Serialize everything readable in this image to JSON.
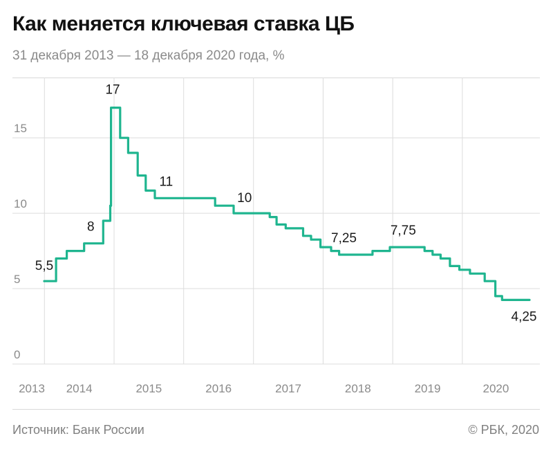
{
  "header": {
    "title": "Как меняется ключевая ставка ЦБ",
    "subtitle": "31 декабря 2013 — 18 декабря 2020 года, %"
  },
  "footer": {
    "source": "Источник: Банк России",
    "copyright": "© РБК, 2020"
  },
  "colors": {
    "line": "#1fb58f",
    "grid": "#dcdcdc",
    "tick_text": "#8a8a8a",
    "label_text": "#1a1a1a"
  },
  "chart_data": {
    "type": "line",
    "title": "Как меняется ключевая ставка ЦБ",
    "subtitle": "31 декабря 2013 — 18 декабря 2020 года, %",
    "xlabel": "",
    "ylabel": "",
    "x_tick_labels": [
      "2013",
      "2014",
      "2015",
      "2016",
      "2017",
      "2018",
      "2019",
      "2020"
    ],
    "y_ticks": [
      0,
      5,
      10,
      15
    ],
    "y_tick_labels": [
      "0",
      "5",
      "10",
      "15"
    ],
    "xlim": [
      "2013-12-31",
      "2020-12-18"
    ],
    "ylim": [
      0,
      19
    ],
    "grid": true,
    "legend": "none",
    "series": [
      {
        "x": [
          "2013-12-31",
          "2014-03-03",
          "2014-04-28",
          "2014-07-28",
          "2014-11-05",
          "2014-12-12",
          "2014-12-16",
          "2015-02-02",
          "2015-03-16",
          "2015-05-05",
          "2015-06-16",
          "2015-08-03",
          "2016-06-14",
          "2016-09-19",
          "2017-03-27",
          "2017-05-02",
          "2017-06-19",
          "2017-09-18",
          "2017-10-30",
          "2017-12-18",
          "2018-02-12",
          "2018-03-26",
          "2018-09-17",
          "2018-12-17",
          "2019-06-17",
          "2019-07-29",
          "2019-09-09",
          "2019-10-28",
          "2019-12-16",
          "2020-02-10",
          "2020-04-27",
          "2020-06-22",
          "2020-07-27",
          "2020-12-18"
        ],
        "y": [
          5.5,
          7.0,
          7.5,
          8.0,
          9.5,
          10.5,
          17.0,
          15.0,
          14.0,
          12.5,
          11.5,
          11.0,
          10.5,
          10.0,
          9.75,
          9.25,
          9.0,
          8.5,
          8.25,
          7.75,
          7.5,
          7.25,
          7.5,
          7.75,
          7.5,
          7.25,
          7.0,
          6.5,
          6.25,
          6.0,
          5.5,
          4.5,
          4.25,
          4.25
        ]
      }
    ],
    "annotations": [
      {
        "text": "5,5",
        "x": "2013-12-31",
        "y": 5.5
      },
      {
        "text": "8",
        "x": "2014-09-01",
        "y": 8.0
      },
      {
        "text": "17",
        "x": "2014-12-25",
        "y": 17.0
      },
      {
        "text": "11",
        "x": "2015-10-01",
        "y": 11.0
      },
      {
        "text": "10",
        "x": "2016-11-15",
        "y": 10.0
      },
      {
        "text": "7,25",
        "x": "2018-04-20",
        "y": 7.25
      },
      {
        "text": "7,75",
        "x": "2019-02-25",
        "y": 7.75
      },
      {
        "text": "4,25",
        "x": "2020-12-18",
        "y": 4.25
      }
    ]
  }
}
